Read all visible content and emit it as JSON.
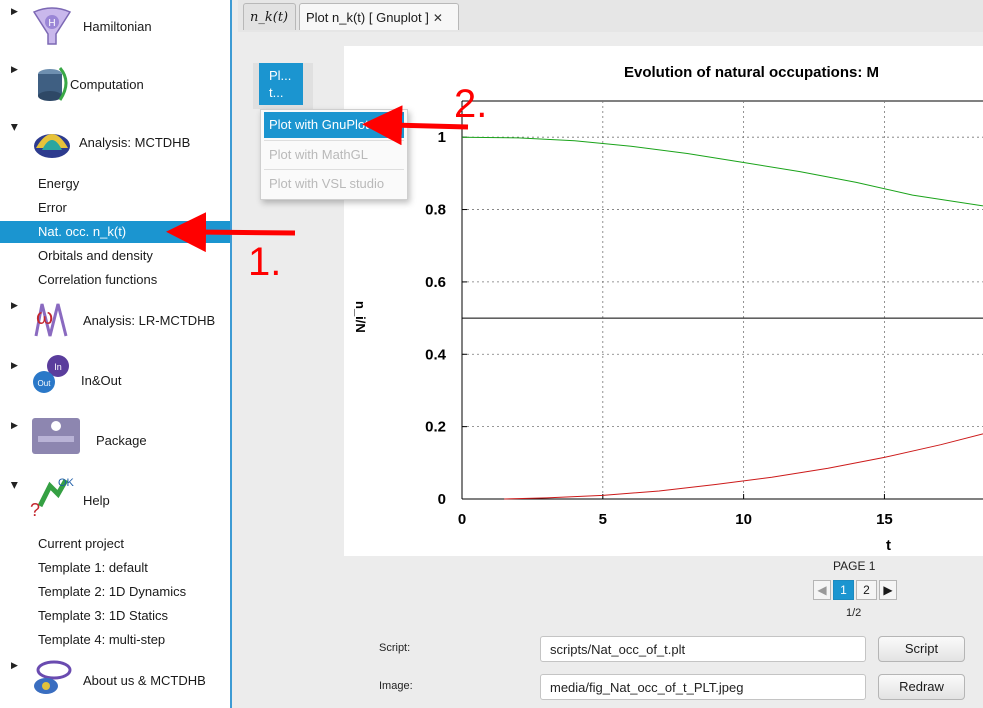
{
  "sidebar": {
    "categories": [
      {
        "label": "Hamiltonian",
        "icon": "hamiltonian-funnel-icon"
      },
      {
        "label": "Computation",
        "icon": "computation-cylinder-icon"
      },
      {
        "label": "Analysis: MCTDHB",
        "icon": "analysis-surface-icon"
      },
      {
        "label": "Analysis: LR-MCTDHB",
        "icon": "omega-wave-icon"
      },
      {
        "label": "In&Out",
        "icon": "in-out-arrows-icon"
      },
      {
        "label": "Package",
        "icon": "package-box-icon"
      },
      {
        "label": "Help",
        "icon": "help-ok-icon"
      },
      {
        "label": "About us & MCTDHB",
        "icon": "about-atom-icon"
      }
    ],
    "analysis_items": [
      "Energy",
      "Error",
      "Nat. occ. n_k(t)",
      "Orbitals and density",
      "Correlation functions"
    ],
    "help_items": [
      "Current project",
      "Template 1: default",
      "Template 2: 1D Dynamics",
      "Template 3: 1D Statics",
      "Template 4: multi-step"
    ]
  },
  "tabs": [
    {
      "label": "n_k(t)",
      "active": false
    },
    {
      "label": "Plot n_k(t) [ Gnuplot ]",
      "active": true
    }
  ],
  "plot_button": {
    "line1": "Pl...",
    "line2": "t..."
  },
  "menu": {
    "items": [
      {
        "label": "Plot with GnuPlot",
        "state": "selected"
      },
      {
        "label": "Plot with MathGL",
        "state": "disabled"
      },
      {
        "label": "Plot with VSL studio",
        "state": "disabled"
      }
    ]
  },
  "chart_data": {
    "type": "line",
    "title": "Evolution of natural occupations: M",
    "xlabel": "t",
    "ylabel": "n_i/N",
    "x_ticks": [
      "0",
      "5",
      "10",
      "15"
    ],
    "y_ticks": [
      "0",
      "0.2",
      "0.4",
      "0.6",
      "0.8",
      "1"
    ],
    "xlim": [
      0,
      18.5
    ],
    "ylim": [
      0,
      1.1
    ],
    "grid": true,
    "series": [
      {
        "color": "#1aa31a",
        "x": [
          0,
          2,
          4,
          6,
          8,
          10,
          12,
          14,
          16,
          18.5
        ],
        "y": [
          1.0,
          0.998,
          0.99,
          0.975,
          0.955,
          0.93,
          0.905,
          0.875,
          0.84,
          0.81
        ]
      },
      {
        "color": "#cc1a1a",
        "x": [
          1.5,
          3,
          5,
          7,
          9,
          11,
          13,
          15,
          17,
          18.5
        ],
        "y": [
          0.0,
          0.003,
          0.01,
          0.022,
          0.04,
          0.06,
          0.085,
          0.115,
          0.15,
          0.18
        ]
      },
      {
        "color": "#000000",
        "x": [
          0,
          18.5
        ],
        "y": [
          0.5,
          0.5
        ]
      }
    ]
  },
  "pager": {
    "label": "PAGE 1",
    "pages": [
      "1",
      "2"
    ],
    "fraction": "1/2",
    "prev": "◀",
    "next": "▶"
  },
  "script": {
    "label": "Script:",
    "value": "scripts/Nat_occ_of_t.plt",
    "button": "Script"
  },
  "image": {
    "label": "Image:",
    "value": "media/fig_Nat_occ_of_t_PLT.jpeg",
    "button": "Redraw"
  },
  "annotations": {
    "step1": "1.",
    "step2": "2.",
    "arrow_color": "#ff0000"
  },
  "colors": {
    "accent": "#1b95d0"
  }
}
